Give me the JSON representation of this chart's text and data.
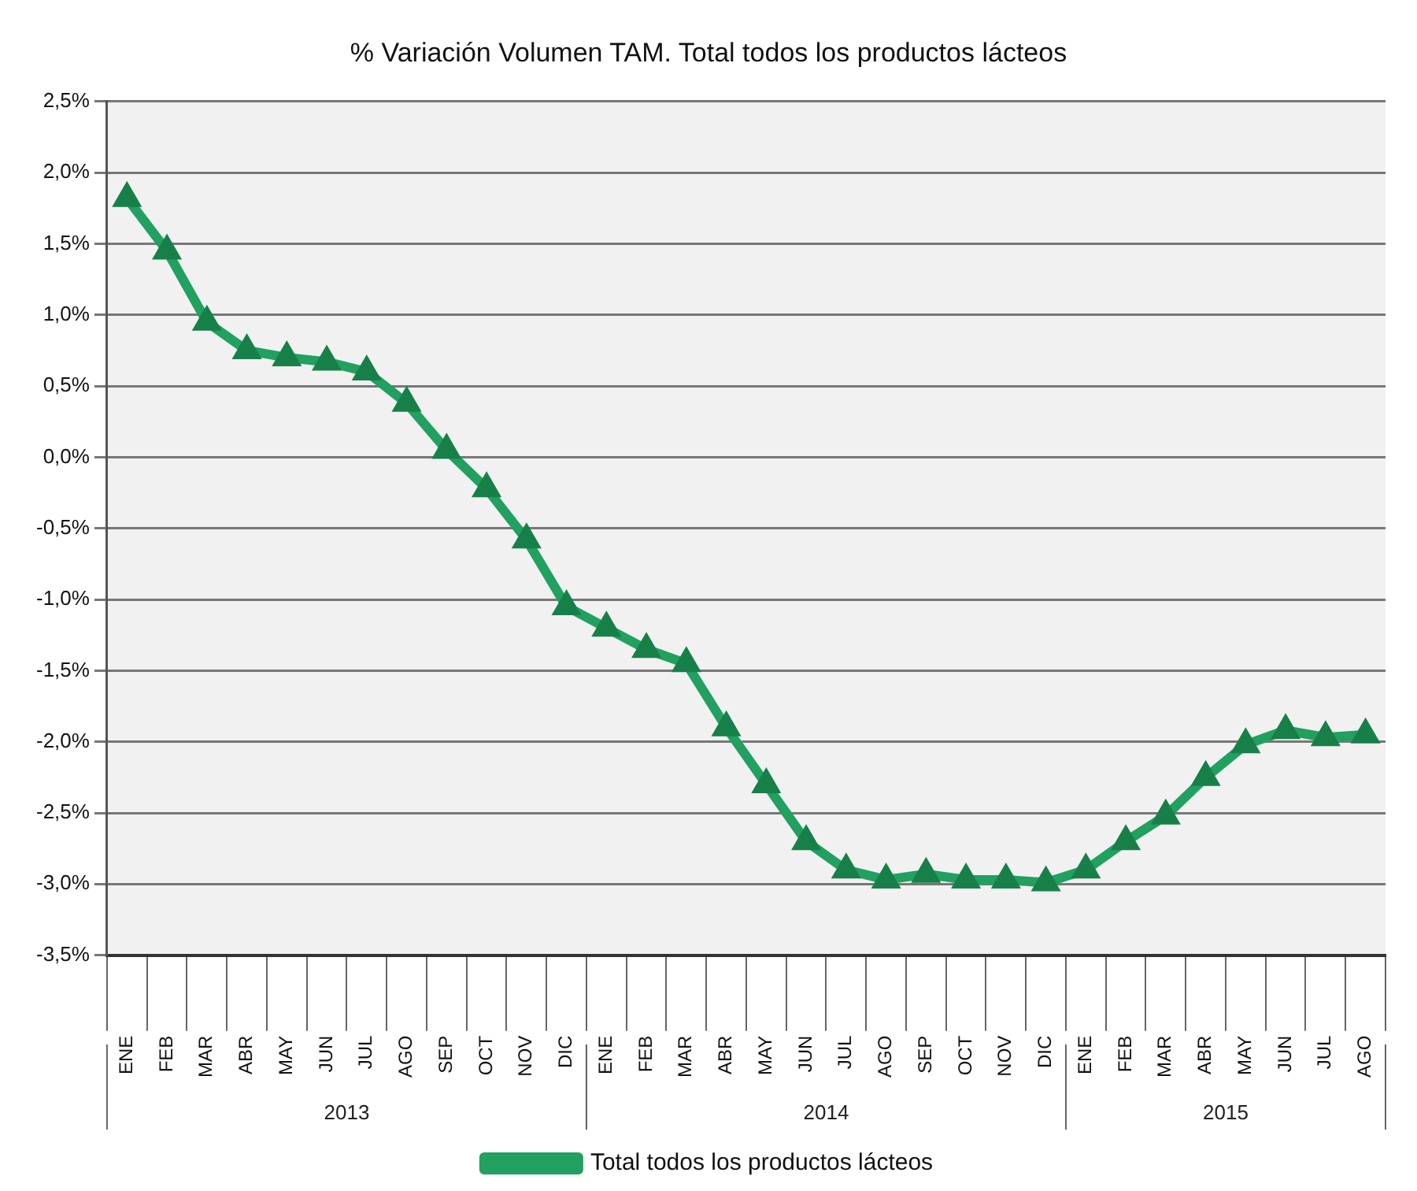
{
  "chart_data": {
    "type": "line",
    "title": "% Variación Volumen TAM. Total todos los productos lácteos",
    "categories": [
      "ENE",
      "FEB",
      "MAR",
      "ABR",
      "MAY",
      "JUN",
      "JUL",
      "AGO",
      "SEP",
      "OCT",
      "NOV",
      "DIC",
      "ENE",
      "FEB",
      "MAR",
      "ABR",
      "MAY",
      "JUN",
      "JUL",
      "AGO",
      "SEP",
      "OCT",
      "NOV",
      "DIC",
      "ENE",
      "FEB",
      "MAR",
      "ABR",
      "MAY",
      "JUN",
      "JUL",
      "AGO"
    ],
    "series": [
      {
        "name": "Total todos los productos lácteos",
        "color": "#21a060",
        "values": [
          1.82,
          1.45,
          0.95,
          0.75,
          0.7,
          0.67,
          0.6,
          0.38,
          0.05,
          -0.22,
          -0.58,
          -1.05,
          -1.2,
          -1.35,
          -1.45,
          -1.9,
          -2.3,
          -2.7,
          -2.9,
          -2.97,
          -2.93,
          -2.97,
          -2.97,
          -2.99,
          -2.9,
          -2.7,
          -2.52,
          -2.25,
          -2.02,
          -1.92,
          -1.97,
          -1.95
        ]
      }
    ],
    "ylim": [
      -3.5,
      2.5
    ],
    "yticks": [
      {
        "value": -3.5,
        "label": "-3,5%"
      },
      {
        "value": -3,
        "label": "-3,0%"
      },
      {
        "value": -2.5,
        "label": "-2,5%"
      },
      {
        "value": -2,
        "label": "-2,0%"
      },
      {
        "value": -1.5,
        "label": "-1,5%"
      },
      {
        "value": -1,
        "label": "-1,0%"
      },
      {
        "value": -0.5,
        "label": "-0,5%"
      },
      {
        "value": 0,
        "label": "0,0%"
      },
      {
        "value": 0.5,
        "label": "0,5%"
      },
      {
        "value": 1,
        "label": "1,0%"
      },
      {
        "value": 1.5,
        "label": "1,5%"
      },
      {
        "value": 2,
        "label": "2,0%"
      },
      {
        "value": 2.5,
        "label": "2,5%"
      }
    ],
    "annotations": [
      "2013",
      "2014",
      "2015"
    ],
    "grid": "y",
    "legend": "bottom",
    "marker": "triangle",
    "line_style": "solid"
  }
}
